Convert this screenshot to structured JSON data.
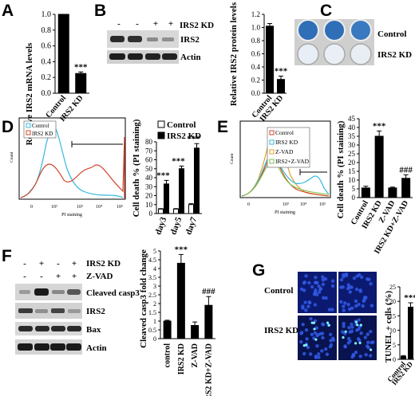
{
  "panelA": {
    "letter": "A",
    "ylabel": "Relative IRS2 mRNA levels",
    "yticks": [
      "0.0",
      "0.2",
      "0.4",
      "0.6",
      "0.8",
      "1.0"
    ],
    "sig": "***",
    "chart_data": {
      "type": "bar",
      "categories": [
        "Control",
        "IRS2 KD"
      ],
      "values": [
        1.0,
        0.25
      ],
      "errors": [
        0.0,
        0.02
      ],
      "ylim": [
        0,
        1.0
      ]
    }
  },
  "panelB": {
    "letter": "B",
    "lanes": [
      "-",
      "-",
      "+",
      "+"
    ],
    "lane_header": "IRS2 KD",
    "blots": [
      "IRS2",
      "Actin"
    ],
    "ylabel": "Relative IRS2 protein levels",
    "yticks": [
      "0.0",
      "0.2",
      "0.4",
      "0.6",
      "0.8",
      "1.0",
      "1.2"
    ],
    "sig": "***",
    "chart_data": {
      "type": "bar",
      "categories": [
        "Control",
        "IRS2 KD"
      ],
      "values": [
        1.02,
        0.21
      ],
      "errors": [
        0.04,
        0.05
      ],
      "ylim": [
        0,
        1.2
      ]
    }
  },
  "panelC": {
    "letter": "C",
    "rows": [
      "Control",
      "IRS2 KD"
    ]
  },
  "panelD": {
    "letter": "D",
    "legend": [
      "Control",
      "IRS2 KD"
    ],
    "xaxis": "PI staining",
    "yaxis": "Count",
    "xticks": [
      "0",
      "10²",
      "10³",
      "10⁴",
      "10⁵"
    ],
    "bar_legend": [
      "Control",
      "IRS2 KD"
    ],
    "ylabel": "Cell death % (PI staining)",
    "yticks": [
      "0",
      "10",
      "20",
      "30",
      "40",
      "50",
      "60",
      "70",
      "80"
    ],
    "sig": [
      "***",
      "***",
      "***"
    ],
    "chart_data": {
      "type": "bar",
      "categories": [
        "day3",
        "day5",
        "day7"
      ],
      "series": [
        {
          "name": "Control",
          "values": [
            5,
            5,
            10
          ],
          "errors": [
            0.5,
            0.5,
            1
          ]
        },
        {
          "name": "IRS2 KD",
          "values": [
            33,
            50,
            73
          ],
          "errors": [
            4,
            3,
            5
          ]
        }
      ],
      "ylim": [
        0,
        80
      ]
    }
  },
  "panelE": {
    "letter": "E",
    "legend": [
      "Control",
      "IRS2 KD",
      "Z-VAD",
      "IRS2+Z-VAD"
    ],
    "xaxis": "PI staining",
    "yaxis": "Count",
    "xticks": [
      "0",
      "10³",
      "10⁴",
      "10⁵"
    ],
    "ylabel": "Cell death % (PI staining)",
    "yticks": [
      "0",
      "5",
      "10",
      "15",
      "20",
      "25",
      "30",
      "35",
      "40",
      "45"
    ],
    "sig": [
      "***",
      "###"
    ],
    "chart_data": {
      "type": "bar",
      "categories": [
        "Control",
        "IRS2 KD",
        "Z-VAD",
        "IRS2 KD+Z-VAD"
      ],
      "values": [
        5.5,
        35,
        5.5,
        11
      ],
      "errors": [
        1,
        3,
        0.5,
        2
      ],
      "ylim": [
        0,
        45
      ]
    }
  },
  "panelF": {
    "letter": "F",
    "row1": [
      "-",
      "+",
      "-",
      "+"
    ],
    "row2": [
      "-",
      "-",
      "+",
      "+"
    ],
    "row_labels": [
      "IRS2 KD",
      "Z-VAD"
    ],
    "blots": [
      "Cleaved casp3",
      "IRS2",
      "Bax",
      "Actin"
    ],
    "ylabel": "Cleaved casp3 fold change",
    "yticks": [
      "0",
      "0.5",
      "1",
      "1.5",
      "2",
      "2.5",
      "3",
      "3.5",
      "4",
      "4.5",
      "5"
    ],
    "sig": [
      "***",
      "###"
    ],
    "chart_data": {
      "type": "bar",
      "categories": [
        "control",
        "IRS2 KD",
        "Z-VAD",
        "IRS2 KD+Z-VAD"
      ],
      "values": [
        1.0,
        4.3,
        0.75,
        1.9
      ],
      "errors": [
        0.05,
        0.5,
        0.2,
        0.5
      ],
      "ylim": [
        0,
        5
      ]
    }
  },
  "panelG": {
    "letter": "G",
    "rows": [
      "Control",
      "IRS2 KD"
    ],
    "ylabel": "TUNEL + cells (%)",
    "yticks": [
      "0",
      "5",
      "10",
      "15",
      "20",
      "25"
    ],
    "sig": "***",
    "chart_data": {
      "type": "bar",
      "categories": [
        "Control",
        "IRS2 KD"
      ],
      "values": [
        1,
        18
      ],
      "errors": [
        0.3,
        1.5
      ],
      "ylim": [
        0,
        25
      ]
    }
  }
}
